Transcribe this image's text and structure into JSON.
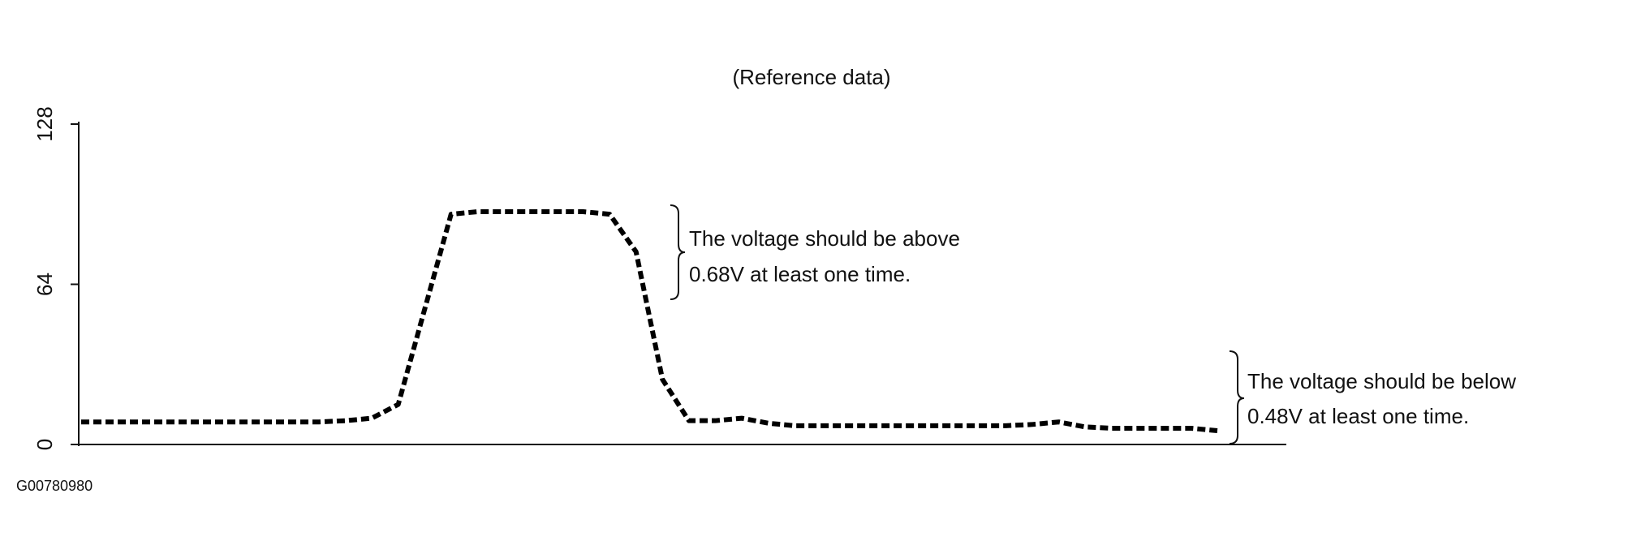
{
  "chart_data": {
    "type": "line",
    "title": "(Reference data)",
    "categories": [
      null,
      null,
      null,
      null,
      null,
      null,
      null,
      null,
      null,
      null,
      null,
      null,
      null,
      null,
      null,
      null,
      null,
      null,
      null,
      null,
      null,
      null,
      null,
      null,
      null,
      null,
      null,
      null,
      null,
      null,
      null,
      null,
      null,
      null,
      null,
      null,
      null,
      null,
      null,
      null,
      null,
      null,
      null,
      null
    ],
    "series": [
      {
        "color": "#000000",
        "values": [
          9,
          9,
          9,
          9,
          9,
          9,
          9,
          9,
          9,
          9,
          9.5,
          10.5,
          16,
          54,
          92,
          93,
          93,
          93,
          93,
          93,
          92,
          77,
          26,
          9.5,
          9.5,
          10.5,
          8.5,
          7.5,
          7.5,
          7.5,
          7.5,
          7.5,
          7.5,
          7.5,
          7.5,
          7.5,
          8,
          9,
          7,
          6.5,
          6.5,
          6.5,
          6.5,
          5.5
        ]
      }
    ],
    "ylim": [
      0,
      128
    ],
    "yticks": [
      0,
      64,
      128
    ],
    "annotations": [
      {
        "lines": [
          "The voltage should be above",
          "0.68V at least one time."
        ]
      },
      {
        "lines": [
          "The voltage should be below",
          "0.48V at least one time."
        ]
      }
    ],
    "footnote": "G00780980"
  }
}
